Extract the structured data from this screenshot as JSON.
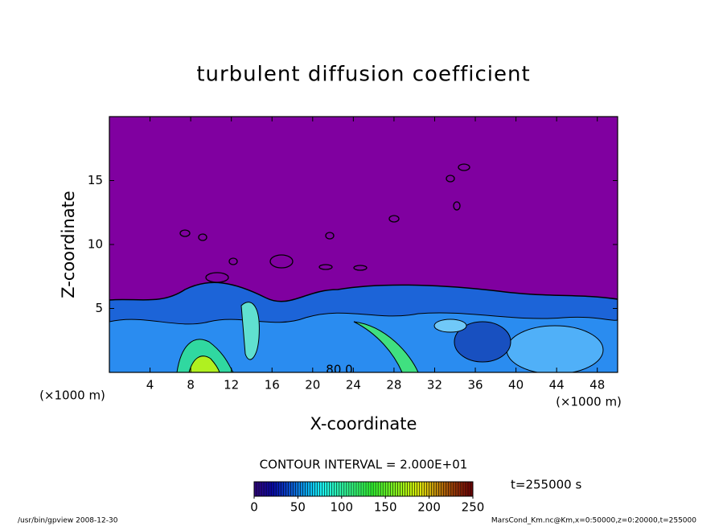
{
  "chart_data": {
    "type": "contour",
    "title": "turbulent diffusion coefficient",
    "xlabel": "X-coordinate",
    "ylabel": "Z-coordinate",
    "xunit": "(×1000 m)",
    "yunit": "(×1000 m)",
    "xlim": [
      0,
      50
    ],
    "xticks": [
      4,
      8,
      12,
      16,
      20,
      24,
      28,
      32,
      36,
      40,
      44,
      48
    ],
    "ylim": [
      0,
      20
    ],
    "yticks": [
      5,
      10,
      15
    ],
    "contour_label": "80.0",
    "contour_interval": "CONTOUR INTERVAL = 2.000E+01",
    "time": "t=255000 s",
    "colorbar": {
      "lim": [
        0,
        250
      ],
      "ticks": [
        0,
        50,
        100,
        150,
        200,
        250
      ]
    },
    "footer_left": "/usr/bin/gpview   2008-12-30",
    "footer_right": "MarsCond_Km.nc@Km,x=0:50000,z=0:20000,t=255000",
    "background_color": "#8000a0"
  }
}
